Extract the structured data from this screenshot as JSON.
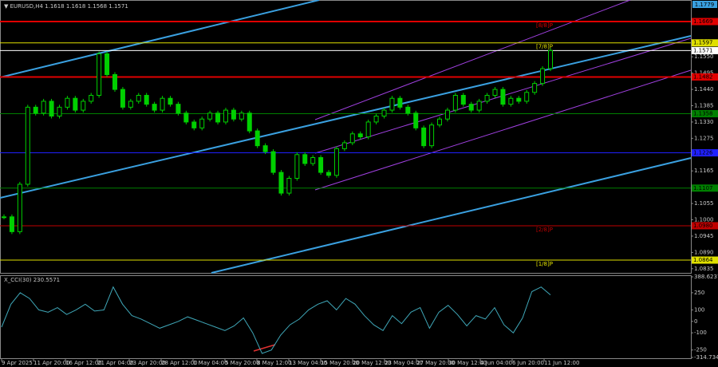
{
  "chart_data": {
    "type": "candlestick",
    "title": "▼ EURUSD,H4  1.1618 1.1618 1.1568 1.1571",
    "color_up": "#00d000",
    "color_down": "#00d000",
    "values": [
      1.101,
      1.096,
      1.112,
      1.138,
      1.136,
      1.14,
      1.135,
      1.138,
      1.141,
      1.137,
      1.14,
      1.142,
      1.156,
      1.149,
      1.144,
      1.138,
      1.14,
      1.142,
      1.139,
      1.137,
      1.141,
      1.139,
      1.136,
      1.133,
      1.131,
      1.134,
      1.136,
      1.133,
      1.137,
      1.134,
      1.136,
      1.13,
      1.125,
      1.123,
      1.116,
      1.109,
      1.114,
      1.122,
      1.119,
      1.121,
      1.116,
      1.115,
      1.124,
      1.126,
      1.129,
      1.128,
      1.133,
      1.135,
      1.137,
      1.141,
      1.138,
      1.136,
      1.131,
      1.125,
      1.132,
      1.134,
      1.137,
      1.142,
      1.139,
      1.137,
      1.14,
      1.142,
      1.144,
      1.139,
      1.141,
      1.14,
      1.143,
      1.146,
      1.151,
      1.1571
    ],
    "ylim": [
      1.0821,
      1.1739
    ],
    "yticks": [
      {
        "value": 1.155,
        "label": "1.1550"
      },
      {
        "value": 1.1495,
        "label": "1.1495"
      },
      {
        "value": 1.144,
        "label": "1.1440"
      },
      {
        "value": 1.1385,
        "label": "1.1385"
      },
      {
        "value": 1.133,
        "label": "1.1330"
      },
      {
        "value": 1.1275,
        "label": "1.1275"
      },
      {
        "value": 1.122,
        "label": "1.1220"
      },
      {
        "value": 1.1165,
        "label": "1.1165"
      },
      {
        "value": 1.111,
        "label": "1.1110"
      },
      {
        "value": 1.1055,
        "label": "1.1055"
      },
      {
        "value": 1.1,
        "label": "1.1000"
      },
      {
        "value": 1.0945,
        "label": "1.0945"
      },
      {
        "value": 1.089,
        "label": "1.0890"
      },
      {
        "value": 1.0835,
        "label": "1.0835"
      }
    ],
    "top_label": "1.1779",
    "levels": [
      {
        "value": 1.1669,
        "label": "1.1669",
        "color": "#e00000",
        "tag": "[8/8]P"
      },
      {
        "value": 1.1597,
        "label": "1.1597",
        "color": "#e0e000",
        "tag": "[7/8]P"
      },
      {
        "value": 1.1571,
        "label": "1.1571",
        "color": "#ffffff"
      },
      {
        "value": 1.1482,
        "label": "1.1482",
        "color": "#e00000"
      },
      {
        "value": 1.1358,
        "label": "1.1358",
        "color": "#008000"
      },
      {
        "value": 1.1226,
        "label": "1.1226",
        "color": "#2020ff"
      },
      {
        "value": 1.1107,
        "label": "1.1107",
        "color": "#008000"
      },
      {
        "value": 1.098,
        "label": "1.0980",
        "color": "#c00000",
        "tag": "[2/8]P"
      },
      {
        "value": 1.0864,
        "label": "1.0864",
        "color": "#e0e000",
        "tag": "[1/8]P"
      }
    ],
    "x_labels": [
      "9 Apr 2025",
      "11 Apr 20:00",
      "16 Apr 12:00",
      "21 Apr 04:00",
      "23 Apr 20:00",
      "28 Apr 12:00",
      "1 May 04:00",
      "5 May 20:00",
      "8 May 12:00",
      "13 May 04:00",
      "15 May 20:00",
      "20 May 12:00",
      "23 May 04:00",
      "27 May 20:00",
      "30 May 12:00",
      "4 Jun 04:00",
      "6 Jun 20:00",
      "11 Jun 12:00"
    ],
    "indicator": {
      "type": "line",
      "title": "X_CCI(30) 230.5571",
      "color": "#3fa7b8",
      "values": [
        -50,
        150,
        250,
        200,
        100,
        80,
        120,
        60,
        100,
        150,
        90,
        100,
        300,
        150,
        50,
        20,
        -20,
        -60,
        -30,
        0,
        40,
        10,
        -20,
        -50,
        -80,
        -40,
        30,
        -100,
        -280,
        -250,
        -120,
        -30,
        20,
        100,
        150,
        180,
        100,
        200,
        150,
        50,
        -30,
        -80,
        50,
        -20,
        80,
        120,
        -60,
        80,
        140,
        60,
        -40,
        50,
        20,
        120,
        -30,
        -100,
        30,
        260,
        300,
        231
      ],
      "ylim": [
        -314.734,
        388.6237
      ],
      "yticks": [
        388.6237,
        250,
        100,
        0,
        -100,
        -250,
        -314.734
      ]
    }
  }
}
